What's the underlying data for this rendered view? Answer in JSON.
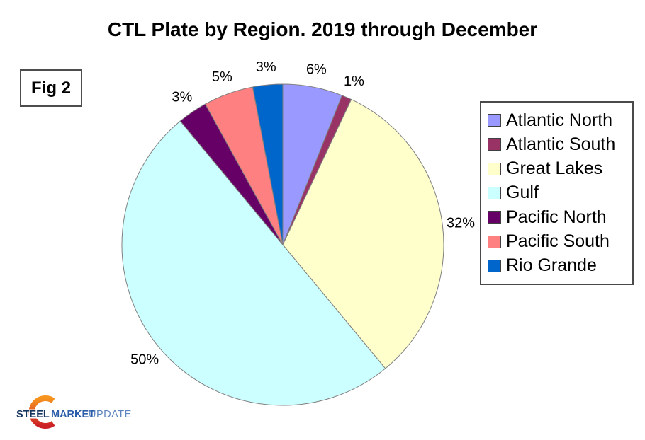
{
  "title": "CTL Plate by Region. 2019 through December",
  "figure_label": "Fig 2",
  "logo": {
    "word_steel": "STEEL",
    "word_market": "MARKET",
    "word_update": "UPDATE",
    "steel_color": "#16355E",
    "market_color": "#2A5DA9",
    "update_color": "#5C84BE",
    "crescent_top_color": "#F7941E",
    "crescent_bottom_color": "#CC2127"
  },
  "chart_data": {
    "type": "pie",
    "title": "CTL Plate by Region. 2019 through December",
    "categories": [
      "Atlantic North",
      "Atlantic South",
      "Great Lakes",
      "Gulf",
      "Pacific North",
      "Pacific South",
      "Rio Grande"
    ],
    "values": [
      6,
      1,
      32,
      50,
      3,
      5,
      3
    ],
    "unit": "%",
    "labels": [
      "6%",
      "1%",
      "32%",
      "50%",
      "3%",
      "5%",
      "3%"
    ],
    "colors": [
      "#9999FF",
      "#993366",
      "#FFFFCC",
      "#CCFFFF",
      "#660066",
      "#FF8080",
      "#0066CC"
    ],
    "start_angle_deg": 0,
    "direction": "clockwise",
    "slice_border_color": "#808080",
    "legend_position": "right",
    "legend_border_color": "#4a4a4a"
  }
}
